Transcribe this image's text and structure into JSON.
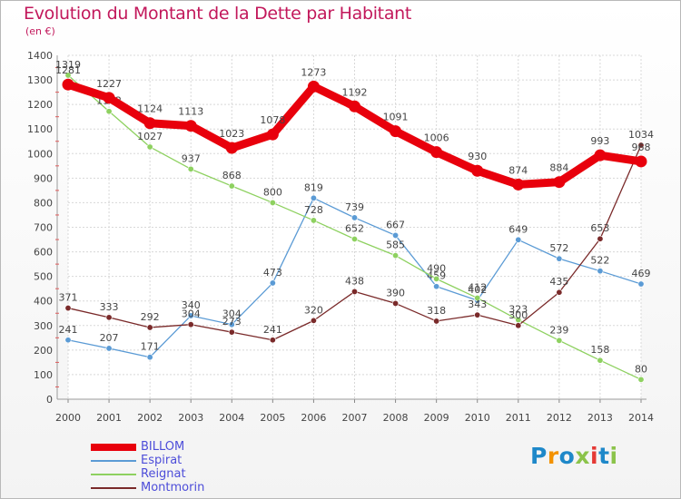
{
  "title": "Evolution du Montant de la Dette par Habitant",
  "subtitle": "(en €)",
  "logo": {
    "letters": [
      "P",
      "r",
      "o",
      "x",
      "i",
      "t",
      "i"
    ],
    "colors": [
      "#1e88c9",
      "#f39200",
      "#1e88c9",
      "#8bc34a",
      "#e53935",
      "#1e88c9",
      "#8bc34a"
    ]
  },
  "chart_data": {
    "type": "line",
    "x": [
      2000,
      2001,
      2002,
      2003,
      2004,
      2005,
      2006,
      2007,
      2008,
      2009,
      2010,
      2011,
      2012,
      2013,
      2014
    ],
    "ylim": [
      0,
      1400
    ],
    "yticks": [
      0,
      100,
      200,
      300,
      400,
      500,
      600,
      700,
      800,
      900,
      1000,
      1100,
      1200,
      1300,
      1400
    ],
    "grid": true,
    "legend_position": "bottom-left",
    "series": [
      {
        "name": "BILLOM",
        "color": "#e8000c",
        "values": [
          1281,
          1227,
          1124,
          1113,
          1023,
          1078,
          1273,
          1192,
          1091,
          1006,
          930,
          874,
          884,
          993,
          968
        ],
        "labels": [
          "1281",
          "1227",
          "1124",
          "1113",
          "1023",
          "1078",
          "1273",
          "1192",
          "1091",
          "1006",
          "930",
          "874",
          "884",
          "993",
          "968"
        ]
      },
      {
        "name": "Espirat",
        "color": "#5b9bd5",
        "values": [
          241,
          207,
          171,
          340,
          304,
          473,
          819,
          739,
          667,
          459,
          402,
          649,
          572,
          522,
          469
        ],
        "labels": [
          "241",
          "207",
          "171",
          "340",
          "304",
          "473",
          "819",
          "739",
          "667",
          "459",
          "402",
          "649",
          "572",
          "522",
          "469"
        ]
      },
      {
        "name": "Reignat",
        "color": "#8ed160",
        "values": [
          1319,
          1172,
          1027,
          937,
          868,
          800,
          728,
          652,
          585,
          490,
          412,
          323,
          239,
          158,
          80
        ],
        "labels": [
          "1319",
          "1172",
          "1027",
          "937",
          "868",
          "800",
          "728",
          "652",
          "585",
          "490",
          "412",
          "323",
          "239",
          "158",
          "80"
        ]
      },
      {
        "name": "Montmorin",
        "color": "#7a2a2a",
        "values": [
          371,
          333,
          292,
          304,
          273,
          241,
          320,
          438,
          390,
          318,
          343,
          300,
          435,
          653,
          1034
        ],
        "labels": [
          "371",
          "333",
          "292",
          "304",
          "273",
          "241",
          "320",
          "438",
          "390",
          "318",
          "343",
          "300",
          "435",
          "653",
          "1034"
        ]
      }
    ]
  }
}
